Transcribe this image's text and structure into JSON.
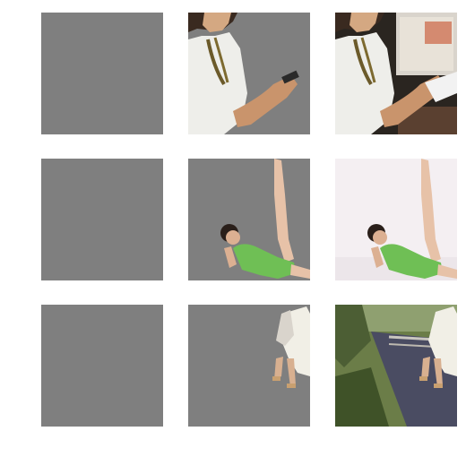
{
  "grid": {
    "rows": [
      {
        "row_label": "woman-phone",
        "tiles": [
          "mask-empty",
          "segmented-cutout",
          "original-photo"
        ]
      },
      {
        "row_label": "woman-green-swimsuit",
        "tiles": [
          "mask-empty",
          "segmented-cutout",
          "original-photo"
        ]
      },
      {
        "row_label": "woman-on-rail-tracks",
        "tiles": [
          "mask-empty",
          "segmented-cutout",
          "original-photo"
        ]
      }
    ]
  },
  "colors": {
    "background": "#ffffff",
    "mask_gray": "#7f7f7f",
    "swimsuit_green": "#6fbf55",
    "skin": "#d9a680",
    "hair": "#2a1f1a",
    "white_cloth": "#f1f1ee",
    "room_light": "#f5eff2",
    "grass": "#6b7d48",
    "track": "#4a4c62"
  }
}
